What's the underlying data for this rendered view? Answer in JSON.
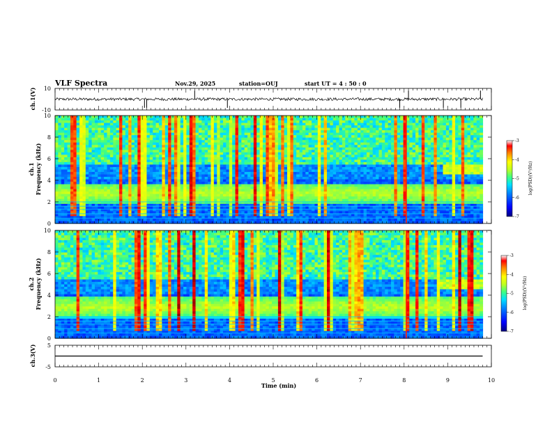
{
  "header": {
    "title": "VLF Spectra",
    "date": "Nov.29, 2025",
    "station": "station=OUJ",
    "start_ut": "start  UT =   4 : 50 : 0"
  },
  "colors": {
    "colormap": [
      "#00007f",
      "#0000ff",
      "#0080ff",
      "#00e0ff",
      "#40ff80",
      "#c0ff20",
      "#ffff00",
      "#ff8000",
      "#ff0000",
      "#800000"
    ]
  },
  "chart_data": [
    {
      "id": "ch1_waveform",
      "type": "line",
      "ylabel": "ch.1(V)",
      "ylim": [
        -10,
        10
      ],
      "yticks": [
        10,
        -10
      ],
      "xlim": [
        0,
        10
      ],
      "baseline": 0,
      "spikes_x": [
        2.05,
        2.1,
        3.2,
        3.95,
        7.9,
        8.1,
        8.9,
        9.3,
        9.75
      ]
    },
    {
      "id": "ch1_spectrogram",
      "type": "heatmap",
      "ylabel": "ch.1 Frequency (kHz)",
      "ylim": [
        0,
        10
      ],
      "yticks": [
        0,
        2,
        4,
        6,
        8,
        10
      ],
      "xlim": [
        0,
        10.0
      ],
      "data_end_min": 9.8,
      "band_center_khz": 2.8,
      "secondary_band_khz": 5.0,
      "secondary_band_start_min": 8.9,
      "red_line_min": 8.05,
      "colorbar": {
        "label": "log(PSD)(V²/Hz)",
        "ticks": [
          -3,
          -4,
          -5,
          -6,
          -7
        ],
        "range": [
          -7,
          -3
        ]
      }
    },
    {
      "id": "ch2_spectrogram",
      "type": "heatmap",
      "ylabel": "ch.2 Frequency (kHz)",
      "ylim": [
        0,
        10
      ],
      "yticks": [
        0,
        2,
        4,
        6,
        8,
        10
      ],
      "xlim": [
        0,
        10.0
      ],
      "data_end_min": 9.8,
      "band_center_khz": 2.9,
      "secondary_band_khz": 5.0,
      "secondary_band_start_min": 8.8,
      "red_line_min": 8.05,
      "colorbar": {
        "label": "log(PSD)(V²/Hz)",
        "ticks": [
          -3,
          -4,
          -5,
          -6,
          -7
        ],
        "range": [
          -7,
          -3
        ]
      }
    },
    {
      "id": "ch3_waveform",
      "type": "line",
      "ylabel": "ch.3(V)",
      "ylim": [
        -5,
        5
      ],
      "yticks": [
        5,
        0,
        -5
      ],
      "xlim": [
        0,
        10
      ],
      "baseline": 0
    }
  ],
  "xaxis": {
    "label": "Time (min)",
    "ticks": [
      0,
      1,
      2,
      3,
      4,
      5,
      6,
      7,
      8,
      9,
      10
    ],
    "xlim": [
      0,
      10
    ]
  }
}
